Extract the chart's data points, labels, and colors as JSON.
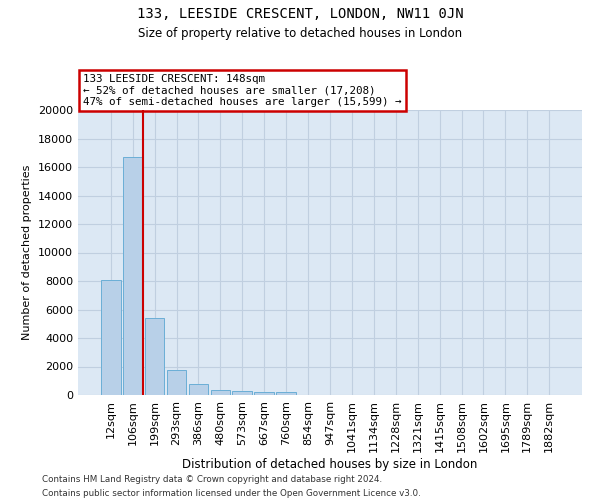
{
  "title": "133, LEESIDE CRESCENT, LONDON, NW11 0JN",
  "subtitle": "Size of property relative to detached houses in London",
  "xlabel": "Distribution of detached houses by size in London",
  "ylabel": "Number of detached properties",
  "categories": [
    "12sqm",
    "106sqm",
    "199sqm",
    "293sqm",
    "386sqm",
    "480sqm",
    "573sqm",
    "667sqm",
    "760sqm",
    "854sqm",
    "947sqm",
    "1041sqm",
    "1134sqm",
    "1228sqm",
    "1321sqm",
    "1415sqm",
    "1508sqm",
    "1602sqm",
    "1695sqm",
    "1789sqm",
    "1882sqm"
  ],
  "values": [
    8100,
    16700,
    5400,
    1750,
    800,
    350,
    270,
    230,
    200,
    0,
    0,
    0,
    0,
    0,
    0,
    0,
    0,
    0,
    0,
    0,
    0
  ],
  "bar_color": "#b8d0e8",
  "bar_edge_color": "#6baed6",
  "property_vline_x": 1.45,
  "property_line_color": "#cc0000",
  "annotation_line1": "133 LEESIDE CRESCENT: 148sqm",
  "annotation_line2": "← 52% of detached houses are smaller (17,208)",
  "annotation_line3": "47% of semi-detached houses are larger (15,599) →",
  "annotation_box_facecolor": "#ffffff",
  "annotation_box_edgecolor": "#cc0000",
  "ylim": [
    0,
    20000
  ],
  "yticks": [
    0,
    2000,
    4000,
    6000,
    8000,
    10000,
    12000,
    14000,
    16000,
    18000,
    20000
  ],
  "grid_color": "#c0cfe0",
  "background_color": "#dce8f4",
  "footer_line1": "Contains HM Land Registry data © Crown copyright and database right 2024.",
  "footer_line2": "Contains public sector information licensed under the Open Government Licence v3.0."
}
